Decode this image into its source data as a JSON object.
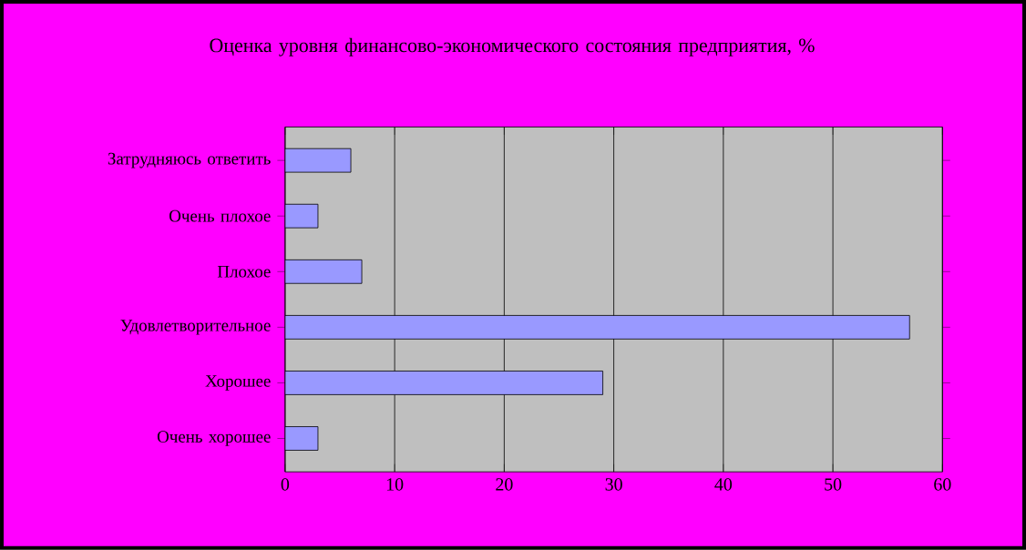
{
  "chart_data": {
    "type": "bar",
    "orientation": "horizontal",
    "title": "Оценка уровня финансово-экономического состояния предприятия, %",
    "categories": [
      "Затрудняюсь ответить",
      "Очень плохое",
      "Плохое",
      "Удовлетворительное",
      "Хорошее",
      "Очень хорошее"
    ],
    "values": [
      6,
      3,
      7,
      57,
      29,
      3
    ],
    "color": "#9999ff",
    "xlim": [
      0,
      60
    ],
    "xticks": [
      0,
      10,
      20,
      30,
      40,
      50,
      60
    ],
    "grid": "x"
  }
}
